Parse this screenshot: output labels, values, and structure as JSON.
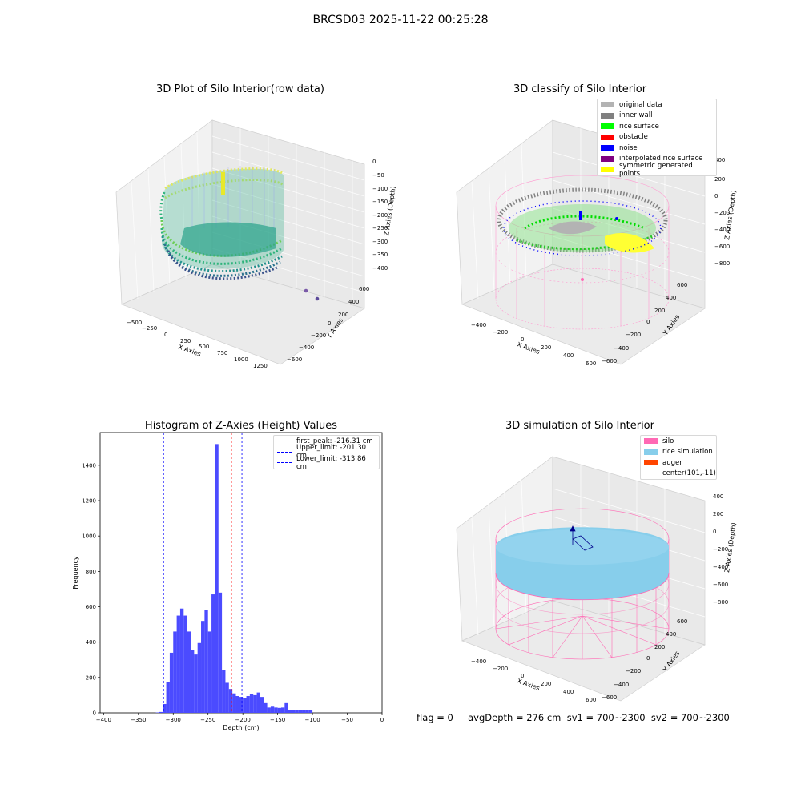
{
  "figure": {
    "title": "BRCSD03 2025-11-22 00:25:28",
    "footer": "flag = 0     avgDepth = 276 cm  sv1 = 700~2300  sv2 = 700~2300"
  },
  "panels": {
    "raw": {
      "title": "3D Plot of Silo Interior(row data)",
      "xlabel": "X Axies",
      "ylabel": "Y Axies",
      "zlabel": "Z Axies (Depth)",
      "xticks": [
        "−500",
        "−250",
        "0",
        "250",
        "500",
        "750",
        "1000",
        "1250"
      ],
      "yticks": [
        "600",
        "400",
        "200",
        "0",
        "−200",
        "−400",
        "−600"
      ],
      "zticks": [
        "0",
        "−50",
        "−100",
        "−150",
        "−200",
        "−250",
        "−300",
        "−350",
        "−400"
      ]
    },
    "classify": {
      "title": "3D classify of Silo Interior",
      "xlabel": "X Axies",
      "ylabel": "Y Axies",
      "zlabel": "Z Axies (Depth)",
      "xticks": [
        "−400",
        "−200",
        "0",
        "200",
        "400",
        "600"
      ],
      "yticks": [
        "600",
        "400",
        "200",
        "0",
        "−200",
        "−400",
        "−600"
      ],
      "zticks": [
        "200",
        "0",
        "−200",
        "−400",
        "−600",
        "−800"
      ],
      "ztick_top": "400",
      "legend": [
        {
          "label": "original data",
          "color": "#b3b3b3"
        },
        {
          "label": "inner wall",
          "color": "#808080"
        },
        {
          "label": "rice surface",
          "color": "#00ff00"
        },
        {
          "label": "obstacle",
          "color": "#ff0000"
        },
        {
          "label": "noise",
          "color": "#0000ff"
        },
        {
          "label": "interpolated rice surface",
          "color": "#800080"
        },
        {
          "label": "symmetric generated points",
          "color": "#ffff00"
        }
      ]
    },
    "simulation": {
      "title": "3D simulation of Silo Interior",
      "xlabel": "X Axies",
      "ylabel": "Y Axies",
      "zlabel": "Z Axies (Depth)",
      "xticks": [
        "−400",
        "−200",
        "0",
        "200",
        "400",
        "600"
      ],
      "yticks": [
        "600",
        "400",
        "200",
        "0",
        "−200",
        "−400",
        "−600"
      ],
      "zticks": [
        "400",
        "200",
        "0",
        "−200",
        "−400",
        "−600",
        "−800"
      ],
      "legend": [
        {
          "label": "silo",
          "color": "#ff69b4"
        },
        {
          "label": "rice simulation",
          "color": "#87ceeb"
        },
        {
          "label": "auger",
          "color": "#ff4500"
        },
        {
          "label": "center(101,-11)",
          "color": ""
        }
      ]
    }
  },
  "chart_data": [
    {
      "type": "bar",
      "title": "Histogram of Z-Axies (Height) Values",
      "xlabel": "Depth (cm)",
      "ylabel": "Frequency",
      "xlim": [
        -405,
        0
      ],
      "ylim": [
        0,
        1585
      ],
      "bin_width": 5,
      "bins": [
        [
          -325,
          -320,
          2
        ],
        [
          -320,
          -315,
          5
        ],
        [
          -315,
          -310,
          50
        ],
        [
          -310,
          -305,
          175
        ],
        [
          -305,
          -300,
          340
        ],
        [
          -300,
          -295,
          460
        ],
        [
          -295,
          -290,
          550
        ],
        [
          -290,
          -285,
          590
        ],
        [
          -285,
          -280,
          550
        ],
        [
          -280,
          -275,
          460
        ],
        [
          -275,
          -270,
          355
        ],
        [
          -270,
          -265,
          330
        ],
        [
          -265,
          -260,
          395
        ],
        [
          -260,
          -255,
          520
        ],
        [
          -255,
          -250,
          580
        ],
        [
          -250,
          -245,
          460
        ],
        [
          -245,
          -240,
          670
        ],
        [
          -240,
          -235,
          1520
        ],
        [
          -235,
          -230,
          680
        ],
        [
          -230,
          -225,
          240
        ],
        [
          -225,
          -220,
          170
        ],
        [
          -220,
          -215,
          135
        ],
        [
          -215,
          -210,
          110
        ],
        [
          -210,
          -205,
          95
        ],
        [
          -205,
          -200,
          90
        ],
        [
          -200,
          -195,
          85
        ],
        [
          -195,
          -190,
          95
        ],
        [
          -190,
          -185,
          105
        ],
        [
          -185,
          -180,
          100
        ],
        [
          -180,
          -175,
          115
        ],
        [
          -175,
          -170,
          90
        ],
        [
          -170,
          -165,
          55
        ],
        [
          -165,
          -160,
          30
        ],
        [
          -160,
          -155,
          35
        ],
        [
          -155,
          -150,
          30
        ],
        [
          -150,
          -145,
          28
        ],
        [
          -145,
          -140,
          30
        ],
        [
          -140,
          -135,
          55
        ],
        [
          -135,
          -130,
          15
        ],
        [
          -130,
          -125,
          15
        ],
        [
          -125,
          -120,
          15
        ],
        [
          -120,
          -115,
          15
        ],
        [
          -115,
          -110,
          15
        ],
        [
          -110,
          -105,
          15
        ],
        [
          -105,
          -100,
          18
        ]
      ],
      "xticks": [
        "−400",
        "−350",
        "−300",
        "−250",
        "−200",
        "−150",
        "−100",
        "−50",
        "0"
      ],
      "xtick_values": [
        -400,
        -350,
        -300,
        -250,
        -200,
        -150,
        -100,
        -50,
        0
      ],
      "yticks": [
        "0",
        "200",
        "400",
        "600",
        "800",
        "1000",
        "1200",
        "1400"
      ],
      "ytick_values": [
        0,
        200,
        400,
        600,
        800,
        1000,
        1200,
        1400
      ],
      "reference_lines": [
        {
          "label": "first_peak: -216.31 cm",
          "x": -216.31,
          "color": "#ff0000"
        },
        {
          "label": "Upper_limit: -201.30 cm",
          "x": -201.3,
          "color": "#0000ff"
        },
        {
          "label": "Lower_limit: -313.86 cm",
          "x": -313.86,
          "color": "#0000ff"
        }
      ],
      "bar_color": "#4b4bff"
    }
  ]
}
